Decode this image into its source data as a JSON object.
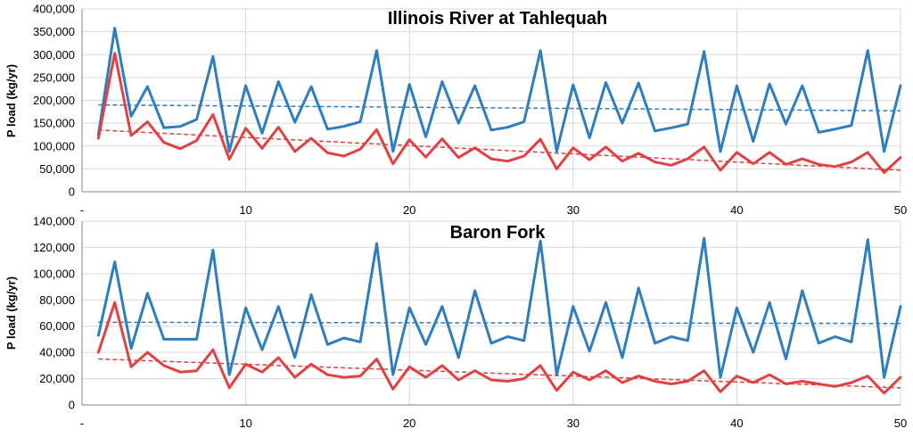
{
  "chart_data": [
    {
      "type": "line",
      "title": "Illinois River at Tahlequah",
      "ylabel": "P load (kg/yr)",
      "xlabel": "",
      "xlim": [
        0,
        50
      ],
      "ylim": [
        0,
        400000
      ],
      "xticks": [
        "-",
        "10",
        "20",
        "30",
        "40",
        "50"
      ],
      "yticks": [
        "0",
        "50,000",
        "100,000",
        "150,000",
        "200,000",
        "250,000",
        "300,000",
        "350,000",
        "400,000"
      ],
      "grid": true,
      "x": [
        1,
        2,
        3,
        4,
        5,
        6,
        7,
        8,
        9,
        10,
        11,
        12,
        13,
        14,
        15,
        16,
        17,
        18,
        19,
        20,
        21,
        22,
        23,
        24,
        25,
        26,
        27,
        28,
        29,
        30,
        31,
        32,
        33,
        34,
        35,
        36,
        37,
        38,
        39,
        40,
        41,
        42,
        43,
        44,
        45,
        46,
        47,
        48,
        49,
        50
      ],
      "series": [
        {
          "color": "#2e7ebe",
          "values": [
            125000,
            358000,
            165000,
            230000,
            140000,
            143000,
            158000,
            296000,
            88000,
            232000,
            128000,
            241000,
            152000,
            230000,
            137000,
            143000,
            153000,
            309000,
            88000,
            235000,
            120000,
            241000,
            150000,
            232000,
            135000,
            141000,
            153000,
            309000,
            88000,
            234000,
            118000,
            239000,
            150000,
            238000,
            133000,
            140000,
            148000,
            307000,
            88000,
            232000,
            110000,
            236000,
            148000,
            232000,
            130000,
            137000,
            145000,
            309000,
            88000,
            232000
          ]
        },
        {
          "color": "#e04143",
          "values": [
            117000,
            303000,
            123000,
            153000,
            108000,
            94000,
            112000,
            169000,
            71000,
            139000,
            95000,
            141000,
            88000,
            117000,
            85000,
            78000,
            93000,
            136000,
            61000,
            114000,
            76000,
            116000,
            75000,
            96000,
            72000,
            67000,
            78000,
            115000,
            50000,
            96000,
            70000,
            98000,
            67000,
            84000,
            65000,
            58000,
            72000,
            98000,
            47000,
            86000,
            61000,
            86000,
            60000,
            72000,
            60000,
            55000,
            65000,
            86000,
            42000,
            75000
          ]
        }
      ],
      "trendlines": [
        {
          "color": "#2e7ebe",
          "x": [
            1,
            50
          ],
          "y": [
            190000,
            177000
          ]
        },
        {
          "color": "#e04143",
          "x": [
            1,
            50
          ],
          "y": [
            135000,
            47000
          ]
        }
      ]
    },
    {
      "type": "line",
      "title": "Baron Fork",
      "ylabel": "P load (kg/yr)",
      "xlabel": "",
      "xlim": [
        0,
        50
      ],
      "ylim": [
        0,
        140000
      ],
      "xticks": [
        "-",
        "10",
        "20",
        "30",
        "40",
        "50"
      ],
      "yticks": [
        "0",
        "20,000",
        "40,000",
        "60,000",
        "80,000",
        "100,000",
        "120,000",
        "140,000"
      ],
      "grid": true,
      "x": [
        1,
        2,
        3,
        4,
        5,
        6,
        7,
        8,
        9,
        10,
        11,
        12,
        13,
        14,
        15,
        16,
        17,
        18,
        19,
        20,
        21,
        22,
        23,
        24,
        25,
        26,
        27,
        28,
        29,
        30,
        31,
        32,
        33,
        34,
        35,
        36,
        37,
        38,
        39,
        40,
        41,
        42,
        43,
        44,
        45,
        46,
        47,
        48,
        49,
        50
      ],
      "series": [
        {
          "color": "#2e7ebe",
          "values": [
            53000,
            109000,
            43000,
            85000,
            50000,
            50000,
            50000,
            118000,
            23000,
            74000,
            42000,
            75000,
            36000,
            84000,
            46000,
            51000,
            48000,
            123000,
            23000,
            74000,
            46000,
            75000,
            36000,
            87000,
            47000,
            52000,
            49000,
            125000,
            23000,
            75000,
            41000,
            78000,
            36000,
            89000,
            47000,
            52000,
            49000,
            127000,
            21000,
            74000,
            40000,
            78000,
            35000,
            87000,
            47000,
            52000,
            48000,
            126000,
            21000,
            75000
          ]
        },
        {
          "color": "#e04143",
          "values": [
            40000,
            78000,
            29000,
            40000,
            30000,
            25000,
            26000,
            42000,
            13000,
            31000,
            25000,
            36000,
            21000,
            31000,
            23000,
            21000,
            22000,
            35000,
            12000,
            29000,
            21000,
            30000,
            19000,
            26000,
            19000,
            18000,
            20000,
            30000,
            11000,
            25000,
            19000,
            26000,
            17000,
            22000,
            18000,
            16000,
            18000,
            26000,
            10000,
            22000,
            17000,
            23000,
            16000,
            18000,
            16000,
            14000,
            17000,
            22000,
            9000,
            21000
          ]
        }
      ],
      "trendlines": [
        {
          "color": "#2e7ebe",
          "x": [
            1,
            50
          ],
          "y": [
            63000,
            62000
          ]
        },
        {
          "color": "#e04143",
          "x": [
            1,
            50
          ],
          "y": [
            35000,
            13000
          ]
        }
      ]
    }
  ]
}
